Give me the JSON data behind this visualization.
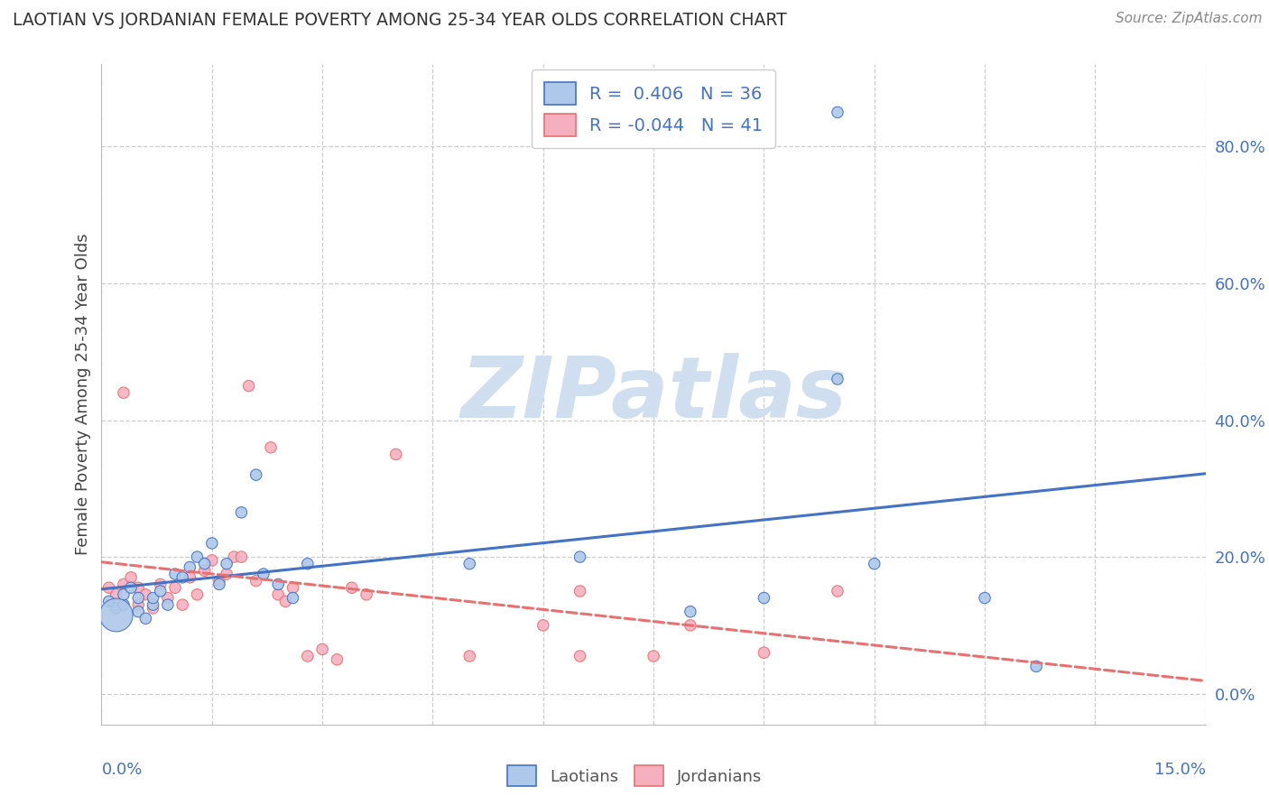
{
  "title": "LAOTIAN VS JORDANIAN FEMALE POVERTY AMONG 25-34 YEAR OLDS CORRELATION CHART",
  "source": "Source: ZipAtlas.com",
  "ylabel": "Female Poverty Among 25-34 Year Olds",
  "xlim": [
    0.0,
    0.15
  ],
  "ylim": [
    -0.045,
    0.92
  ],
  "ytick_values": [
    0.0,
    0.2,
    0.4,
    0.6,
    0.8
  ],
  "xtick_values": [
    0.0,
    0.015,
    0.03,
    0.045,
    0.06,
    0.075,
    0.09,
    0.105,
    0.12,
    0.135,
    0.15
  ],
  "laotians_R": 0.406,
  "laotians_N": 36,
  "jordanians_R": -0.044,
  "jordanians_N": 41,
  "laotian_color": "#adc8e8",
  "jordanian_color": "#f5b0c0",
  "laotian_line_color": "#4472c4",
  "jordanian_line_color": "#e87070",
  "watermark_text": "ZIPatlas",
  "watermark_color": "#d0dff0",
  "background_color": "#ffffff",
  "grid_color": "#cccccc",
  "laotians_x": [
    0.001,
    0.002,
    0.003,
    0.003,
    0.004,
    0.005,
    0.005,
    0.006,
    0.007,
    0.007,
    0.008,
    0.009,
    0.01,
    0.011,
    0.012,
    0.013,
    0.014,
    0.015,
    0.016,
    0.017,
    0.019,
    0.021,
    0.022,
    0.024,
    0.026,
    0.028,
    0.05,
    0.065,
    0.08,
    0.09,
    0.1,
    0.105,
    0.12,
    0.127,
    0.1,
    0.002
  ],
  "laotians_y": [
    0.135,
    0.125,
    0.13,
    0.145,
    0.155,
    0.14,
    0.12,
    0.11,
    0.13,
    0.14,
    0.15,
    0.13,
    0.175,
    0.17,
    0.185,
    0.2,
    0.19,
    0.22,
    0.16,
    0.19,
    0.265,
    0.32,
    0.175,
    0.16,
    0.14,
    0.19,
    0.19,
    0.2,
    0.12,
    0.14,
    0.46,
    0.19,
    0.14,
    0.04,
    0.85,
    0.115
  ],
  "laotians_size": [
    80,
    80,
    80,
    80,
    80,
    80,
    80,
    80,
    80,
    80,
    80,
    80,
    80,
    80,
    80,
    80,
    80,
    80,
    80,
    80,
    80,
    80,
    80,
    80,
    80,
    80,
    80,
    80,
    80,
    80,
    80,
    80,
    80,
    80,
    80,
    700
  ],
  "jordanians_x": [
    0.001,
    0.002,
    0.003,
    0.004,
    0.005,
    0.005,
    0.006,
    0.007,
    0.008,
    0.009,
    0.01,
    0.011,
    0.012,
    0.013,
    0.014,
    0.015,
    0.016,
    0.017,
    0.018,
    0.019,
    0.02,
    0.021,
    0.023,
    0.024,
    0.025,
    0.026,
    0.028,
    0.03,
    0.032,
    0.034,
    0.036,
    0.04,
    0.05,
    0.06,
    0.065,
    0.065,
    0.075,
    0.08,
    0.09,
    0.1,
    0.003
  ],
  "jordanians_y": [
    0.155,
    0.145,
    0.16,
    0.17,
    0.155,
    0.13,
    0.145,
    0.125,
    0.16,
    0.14,
    0.155,
    0.13,
    0.17,
    0.145,
    0.18,
    0.195,
    0.165,
    0.175,
    0.2,
    0.2,
    0.45,
    0.165,
    0.36,
    0.145,
    0.135,
    0.155,
    0.055,
    0.065,
    0.05,
    0.155,
    0.145,
    0.35,
    0.055,
    0.1,
    0.055,
    0.15,
    0.055,
    0.1,
    0.06,
    0.15,
    0.44
  ],
  "jordanians_size": [
    80,
    80,
    80,
    80,
    80,
    80,
    80,
    80,
    80,
    80,
    80,
    80,
    80,
    80,
    80,
    80,
    80,
    80,
    80,
    80,
    80,
    80,
    80,
    80,
    80,
    80,
    80,
    80,
    80,
    80,
    80,
    80,
    80,
    80,
    80,
    80,
    80,
    80,
    80,
    80,
    80
  ]
}
